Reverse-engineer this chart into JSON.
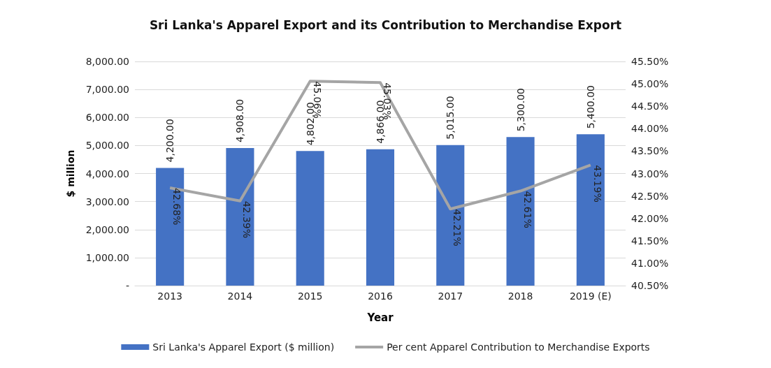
{
  "chart_data": {
    "type": "bar",
    "title": "Sri Lanka's Apparel Export and its Contribution to Merchandise Export",
    "xlabel": "Year",
    "ylabel": "$ million",
    "categories": [
      "2013",
      "2014",
      "2015",
      "2016",
      "2017",
      "2018",
      "2019 (E)"
    ],
    "series": [
      {
        "name": "Sri Lanka's Apparel Export ($ million)",
        "color": "#4472c4",
        "values": [
          4200,
          4908,
          4802,
          4866,
          5015,
          5300,
          5400
        ],
        "value_labels": [
          "4,200.00",
          "4,908.00",
          "4,802.00",
          "4,866.00",
          "5,015.00",
          "5,300.00",
          "5,400.00"
        ]
      },
      {
        "name": "Per cent Apparel Contribution to Merchandise Exports",
        "type": "line",
        "axis": "y2",
        "color": "#a5a5a5",
        "values": [
          42.68,
          42.39,
          45.06,
          45.03,
          42.21,
          42.61,
          43.19
        ],
        "value_labels": [
          "42.68%",
          "42.39%",
          "45.06%",
          "45.03%",
          "42.21%",
          "42.61%",
          "43.19%"
        ]
      }
    ],
    "ylim": [
      0,
      8000
    ],
    "yticks": [
      {
        "value": 0,
        "label": "-"
      },
      {
        "value": 1000,
        "label": "1,000.00"
      },
      {
        "value": 2000,
        "label": "2,000.00"
      },
      {
        "value": 3000,
        "label": "3,000.00"
      },
      {
        "value": 4000,
        "label": "4,000.00"
      },
      {
        "value": 5000,
        "label": "5,000.00"
      },
      {
        "value": 6000,
        "label": "6,000.00"
      },
      {
        "value": 7000,
        "label": "7,000.00"
      },
      {
        "value": 8000,
        "label": "8,000.00"
      }
    ],
    "y2lim": [
      40.5,
      45.5
    ],
    "y2ticks": [
      {
        "value": 40.5,
        "label": "40.50%"
      },
      {
        "value": 41,
        "label": "41.00%"
      },
      {
        "value": 41.5,
        "label": "41.50%"
      },
      {
        "value": 42,
        "label": "42.00%"
      },
      {
        "value": 42.5,
        "label": "42.50%"
      },
      {
        "value": 43,
        "label": "43.00%"
      },
      {
        "value": 43.5,
        "label": "43.50%"
      },
      {
        "value": 44,
        "label": "44.00%"
      },
      {
        "value": 44.5,
        "label": "44.50%"
      },
      {
        "value": 45,
        "label": "45.00%"
      },
      {
        "value": 45.5,
        "label": "45.50%"
      }
    ],
    "grid": "y",
    "legend": "bottom",
    "marker": "none"
  }
}
